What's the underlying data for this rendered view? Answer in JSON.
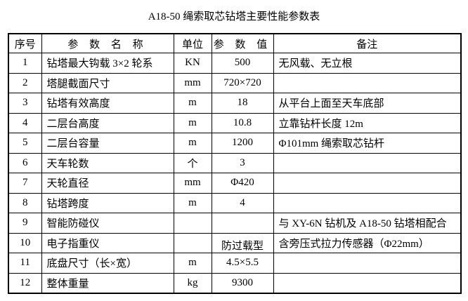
{
  "title": "A18-50 绳索取芯钻塔主要性能参数表",
  "headers": {
    "no": "序号",
    "name": "参 数 名 称",
    "unit": "单位",
    "value": "参 数 值",
    "note": "备注"
  },
  "rows": [
    {
      "no": "1",
      "name": "钻塔最大钩载 3×2 轮系",
      "unit": "KN",
      "value": "500",
      "note": "无风载、无立根"
    },
    {
      "no": "2",
      "name": "塔腿截面尺寸",
      "unit": "mm",
      "value": "720×720",
      "note": ""
    },
    {
      "no": "3",
      "name": "钻塔有效高度",
      "unit": "m",
      "value": "18",
      "note": "从平台上面至天车底部"
    },
    {
      "no": "4",
      "name": "二层台高度",
      "unit": "m",
      "value": "10.8",
      "note": "立靠钻杆长度 12m"
    },
    {
      "no": "5",
      "name": "二层台容量",
      "unit": "m",
      "value": "1200",
      "note": "Φ101mm 绳索取芯钻杆"
    },
    {
      "no": "6",
      "name": "天车轮数",
      "unit": "个",
      "value": "3",
      "note": ""
    },
    {
      "no": "7",
      "name": "天轮直径",
      "unit": "mm",
      "value": "Φ420",
      "note": ""
    },
    {
      "no": "8",
      "name": "钻塔跨度",
      "unit": "m",
      "value": "4",
      "note": ""
    },
    {
      "no": "9",
      "name": "智能防碰仪",
      "unit": "",
      "value": "",
      "note": "与 XY-6N 钻机及 A18-50 钻塔相配合"
    },
    {
      "no": "10",
      "name": "电子指重仪",
      "unit": "",
      "value": "防过载型",
      "note": "含旁压式拉力传感器（Φ22mm）"
    },
    {
      "no": "11",
      "name": "底盘尺寸（长×宽）",
      "unit": "m",
      "value": "4.5×5.5",
      "note": ""
    },
    {
      "no": "12",
      "name": "整体重量",
      "unit": "kg",
      "value": "9300",
      "note": ""
    }
  ]
}
